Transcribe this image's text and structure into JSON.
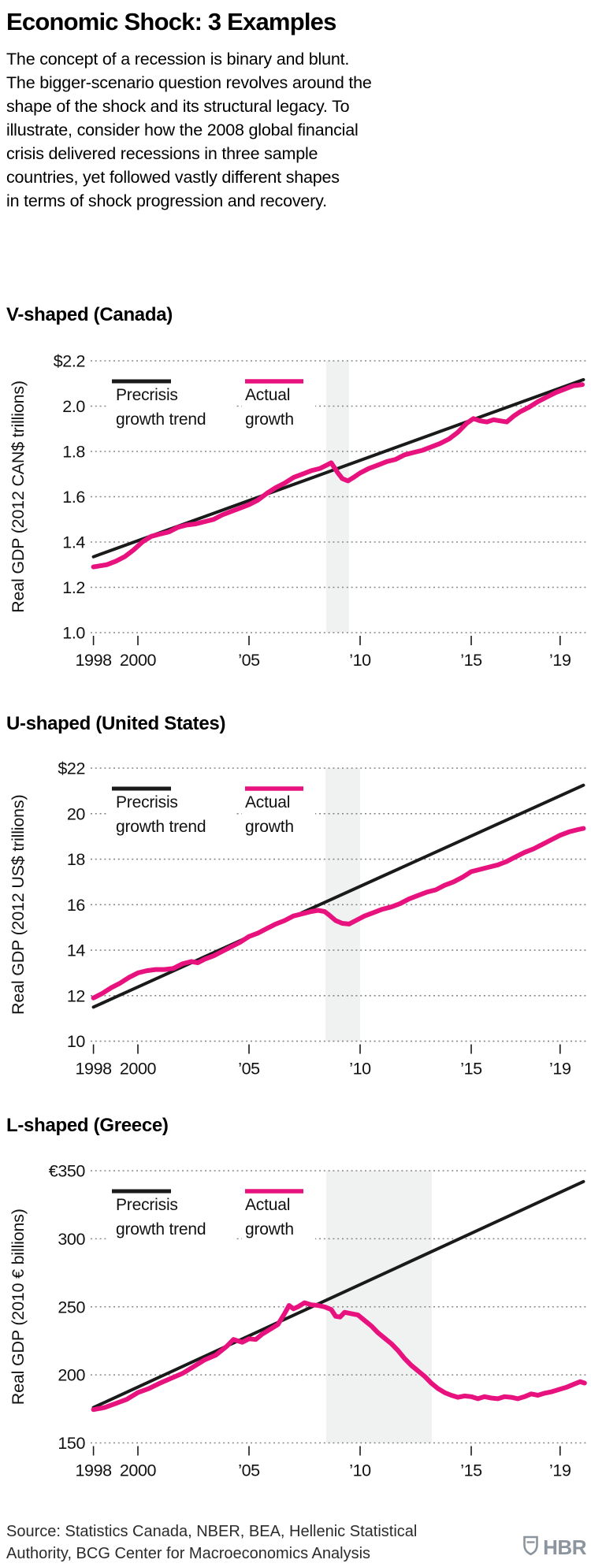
{
  "header": {
    "title": "Economic Shock: 3 Examples",
    "intro": "The concept of a recession is binary and blunt.\nThe bigger-scenario question revolves around the\nshape of the shock and its structural legacy. To\nillustrate, consider how the 2008 global financial\ncrisis delivered recessions in three sample\ncountries, yet followed vastly different shapes\nin terms of shock progression and recovery."
  },
  "legend": {
    "trend_lines": [
      "Precrisis",
      "growth trend"
    ],
    "actual_lines": [
      "Actual",
      "growth"
    ]
  },
  "colors": {
    "trend": "#1a1a1a",
    "actual": "#e7127e",
    "recession_band": "#f0f1f1",
    "grid": "#878787",
    "tick": "#1a1a1a",
    "logo": "#8c959d"
  },
  "footer": {
    "source": "Source: Statistics Canada, NBER, BEA, Hellenic Statistical\nAuthority, BCG Center for Macroeconomics Analysis",
    "logo_text": "HBR"
  },
  "chart_data": [
    {
      "type": "line",
      "title": "V-shaped (Canada)",
      "ylabel": "Real GDP (2012 CAN$ trillions)",
      "ylim": [
        1.0,
        2.2
      ],
      "xlim": [
        1998,
        2020.1
      ],
      "grid": true,
      "legend_position": "top-left-inside",
      "yticks": [
        {
          "label": "$2.2",
          "value": 2.2
        },
        {
          "label": "2.0",
          "value": 2.0
        },
        {
          "label": "1.8",
          "value": 1.8
        },
        {
          "label": "1.6",
          "value": 1.6
        },
        {
          "label": "1.4",
          "value": 1.4
        },
        {
          "label": "1.2",
          "value": 1.2
        },
        {
          "label": "1.0",
          "value": 1.0
        }
      ],
      "xticks": [
        {
          "label": "1998",
          "value": 1998
        },
        {
          "label": "2000",
          "value": 2000
        },
        {
          "label": "’05",
          "value": 2005
        },
        {
          "label": "’10",
          "value": 2010
        },
        {
          "label": "’15",
          "value": 2015
        },
        {
          "label": "’19",
          "value": 2019
        }
      ],
      "recession_band": [
        2008.47,
        2009.5
      ],
      "series": [
        {
          "name": "Precrisis growth trend",
          "color": "trend",
          "points": [
            [
              1998,
              1.335
            ],
            [
              2020.05,
              2.117
            ]
          ]
        },
        {
          "name": "Actual growth",
          "color": "actual",
          "points": [
            [
              1998.0,
              1.29
            ],
            [
              1998.3,
              1.295
            ],
            [
              1998.6,
              1.3
            ],
            [
              1999.0,
              1.315
            ],
            [
              1999.4,
              1.335
            ],
            [
              1999.8,
              1.365
            ],
            [
              2000.2,
              1.4
            ],
            [
              2000.6,
              1.425
            ],
            [
              2001.0,
              1.435
            ],
            [
              2001.4,
              1.445
            ],
            [
              2001.8,
              1.465
            ],
            [
              2002.2,
              1.475
            ],
            [
              2002.6,
              1.48
            ],
            [
              2003.0,
              1.49
            ],
            [
              2003.4,
              1.5
            ],
            [
              2003.8,
              1.52
            ],
            [
              2004.2,
              1.535
            ],
            [
              2004.6,
              1.55
            ],
            [
              2005.0,
              1.565
            ],
            [
              2005.4,
              1.585
            ],
            [
              2005.8,
              1.615
            ],
            [
              2006.2,
              1.64
            ],
            [
              2006.6,
              1.66
            ],
            [
              2007.0,
              1.685
            ],
            [
              2007.4,
              1.7
            ],
            [
              2007.8,
              1.715
            ],
            [
              2008.2,
              1.725
            ],
            [
              2008.5,
              1.74
            ],
            [
              2008.7,
              1.75
            ],
            [
              2009.0,
              1.705
            ],
            [
              2009.2,
              1.68
            ],
            [
              2009.45,
              1.67
            ],
            [
              2009.7,
              1.685
            ],
            [
              2010.0,
              1.705
            ],
            [
              2010.4,
              1.725
            ],
            [
              2010.8,
              1.74
            ],
            [
              2011.2,
              1.755
            ],
            [
              2011.6,
              1.765
            ],
            [
              2012.0,
              1.785
            ],
            [
              2012.4,
              1.795
            ],
            [
              2012.8,
              1.805
            ],
            [
              2013.2,
              1.82
            ],
            [
              2013.6,
              1.835
            ],
            [
              2014.0,
              1.855
            ],
            [
              2014.4,
              1.885
            ],
            [
              2014.8,
              1.925
            ],
            [
              2015.1,
              1.945
            ],
            [
              2015.4,
              1.935
            ],
            [
              2015.7,
              1.93
            ],
            [
              2016.0,
              1.94
            ],
            [
              2016.3,
              1.935
            ],
            [
              2016.6,
              1.93
            ],
            [
              2016.9,
              1.955
            ],
            [
              2017.2,
              1.975
            ],
            [
              2017.6,
              1.995
            ],
            [
              2018.0,
              2.02
            ],
            [
              2018.4,
              2.04
            ],
            [
              2018.8,
              2.06
            ],
            [
              2019.2,
              2.075
            ],
            [
              2019.6,
              2.09
            ],
            [
              2020.0,
              2.095
            ]
          ]
        }
      ]
    },
    {
      "type": "line",
      "title": "U-shaped (United States)",
      "ylabel": "Real GDP (2012 US$ trillions)",
      "ylim": [
        10,
        22
      ],
      "xlim": [
        1998,
        2020.1
      ],
      "grid": true,
      "legend_position": "top-left-inside",
      "yticks": [
        {
          "label": "$22",
          "value": 22
        },
        {
          "label": "20",
          "value": 20
        },
        {
          "label": "18",
          "value": 18
        },
        {
          "label": "16",
          "value": 16
        },
        {
          "label": "14",
          "value": 14
        },
        {
          "label": "12",
          "value": 12
        },
        {
          "label": "10",
          "value": 10
        }
      ],
      "xticks": [
        {
          "label": "1998",
          "value": 1998
        },
        {
          "label": "2000",
          "value": 2000
        },
        {
          "label": "’05",
          "value": 2005
        },
        {
          "label": "’10",
          "value": 2010
        },
        {
          "label": "’15",
          "value": 2015
        },
        {
          "label": "’19",
          "value": 2019
        }
      ],
      "recession_band": [
        2008.44,
        2010.0
      ],
      "series": [
        {
          "name": "Precrisis growth trend",
          "color": "trend",
          "points": [
            [
              1998,
              11.5
            ],
            [
              2020.05,
              21.25
            ]
          ]
        },
        {
          "name": "Actual growth",
          "color": "actual",
          "points": [
            [
              1998.0,
              11.9
            ],
            [
              1998.4,
              12.1
            ],
            [
              1998.8,
              12.35
            ],
            [
              1999.2,
              12.55
            ],
            [
              1999.6,
              12.8
            ],
            [
              2000.0,
              13.0
            ],
            [
              2000.4,
              13.1
            ],
            [
              2000.8,
              13.15
            ],
            [
              2001.2,
              13.15
            ],
            [
              2001.6,
              13.2
            ],
            [
              2002.0,
              13.4
            ],
            [
              2002.4,
              13.5
            ],
            [
              2002.7,
              13.45
            ],
            [
              2003.0,
              13.6
            ],
            [
              2003.4,
              13.75
            ],
            [
              2003.8,
              13.95
            ],
            [
              2004.2,
              14.15
            ],
            [
              2004.6,
              14.35
            ],
            [
              2005.0,
              14.6
            ],
            [
              2005.4,
              14.75
            ],
            [
              2005.8,
              14.95
            ],
            [
              2006.2,
              15.15
            ],
            [
              2006.6,
              15.3
            ],
            [
              2007.0,
              15.5
            ],
            [
              2007.4,
              15.6
            ],
            [
              2007.8,
              15.7
            ],
            [
              2008.1,
              15.75
            ],
            [
              2008.4,
              15.7
            ],
            [
              2008.6,
              15.55
            ],
            [
              2008.9,
              15.3
            ],
            [
              2009.2,
              15.18
            ],
            [
              2009.5,
              15.15
            ],
            [
              2009.8,
              15.3
            ],
            [
              2010.2,
              15.5
            ],
            [
              2010.6,
              15.65
            ],
            [
              2011.0,
              15.8
            ],
            [
              2011.4,
              15.9
            ],
            [
              2011.8,
              16.05
            ],
            [
              2012.2,
              16.25
            ],
            [
              2012.6,
              16.4
            ],
            [
              2013.0,
              16.55
            ],
            [
              2013.4,
              16.65
            ],
            [
              2013.8,
              16.85
            ],
            [
              2014.2,
              17.0
            ],
            [
              2014.6,
              17.2
            ],
            [
              2015.0,
              17.45
            ],
            [
              2015.4,
              17.55
            ],
            [
              2015.8,
              17.65
            ],
            [
              2016.2,
              17.75
            ],
            [
              2016.6,
              17.9
            ],
            [
              2017.0,
              18.1
            ],
            [
              2017.4,
              18.3
            ],
            [
              2017.8,
              18.45
            ],
            [
              2018.2,
              18.65
            ],
            [
              2018.6,
              18.85
            ],
            [
              2019.0,
              19.05
            ],
            [
              2019.4,
              19.2
            ],
            [
              2019.8,
              19.3
            ],
            [
              2020.05,
              19.35
            ]
          ]
        }
      ]
    },
    {
      "type": "line",
      "title": "L-shaped (Greece)",
      "ylabel": "Real GDP (2010 € billions)",
      "ylim": [
        150,
        350
      ],
      "xlim": [
        1998,
        2020.1
      ],
      "grid": true,
      "legend_position": "top-left-inside",
      "yticks": [
        {
          "label": "€350",
          "value": 350
        },
        {
          "label": "300",
          "value": 300
        },
        {
          "label": "250",
          "value": 250
        },
        {
          "label": "200",
          "value": 200
        },
        {
          "label": "150",
          "value": 150
        }
      ],
      "xticks": [
        {
          "label": "1998",
          "value": 1998
        },
        {
          "label": "2000",
          "value": 2000
        },
        {
          "label": "’05",
          "value": 2005
        },
        {
          "label": "’10",
          "value": 2010
        },
        {
          "label": "’15",
          "value": 2015
        },
        {
          "label": "’19",
          "value": 2019
        }
      ],
      "recession_band": [
        2008.47,
        2013.23
      ],
      "series": [
        {
          "name": "Precrisis growth trend",
          "color": "trend",
          "points": [
            [
              1998,
              176
            ],
            [
              2020.05,
              342
            ]
          ]
        },
        {
          "name": "Actual growth",
          "color": "actual",
          "points": [
            [
              1998.0,
              174.5
            ],
            [
              1998.5,
              176
            ],
            [
              1999.0,
              179
            ],
            [
              1999.5,
              182
            ],
            [
              2000.0,
              187
            ],
            [
              2000.5,
              190
            ],
            [
              2001.0,
              194
            ],
            [
              2001.5,
              197.5
            ],
            [
              2002.0,
              201
            ],
            [
              2002.5,
              206
            ],
            [
              2003.0,
              211
            ],
            [
              2003.5,
              214.5
            ],
            [
              2004.0,
              221
            ],
            [
              2004.3,
              226
            ],
            [
              2004.7,
              224
            ],
            [
              2005.0,
              226.5
            ],
            [
              2005.3,
              226
            ],
            [
              2005.6,
              230
            ],
            [
              2006.0,
              234
            ],
            [
              2006.3,
              237
            ],
            [
              2006.6,
              245
            ],
            [
              2006.8,
              251
            ],
            [
              2007.0,
              248.5
            ],
            [
              2007.2,
              250
            ],
            [
              2007.5,
              253
            ],
            [
              2007.8,
              251.5
            ],
            [
              2008.1,
              251
            ],
            [
              2008.4,
              250
            ],
            [
              2008.7,
              248
            ],
            [
              2008.9,
              243
            ],
            [
              2009.1,
              242.5
            ],
            [
              2009.3,
              246
            ],
            [
              2009.6,
              245
            ],
            [
              2009.9,
              244
            ],
            [
              2010.2,
              240
            ],
            [
              2010.5,
              236
            ],
            [
              2010.8,
              231
            ],
            [
              2011.1,
              227
            ],
            [
              2011.4,
              223
            ],
            [
              2011.7,
              218
            ],
            [
              2012.0,
              212
            ],
            [
              2012.3,
              207
            ],
            [
              2012.6,
              203
            ],
            [
              2012.9,
              199
            ],
            [
              2013.2,
              194
            ],
            [
              2013.5,
              190
            ],
            [
              2013.8,
              187
            ],
            [
              2014.1,
              185
            ],
            [
              2014.4,
              183.5
            ],
            [
              2014.7,
              184.5
            ],
            [
              2015.0,
              184
            ],
            [
              2015.3,
              182.5
            ],
            [
              2015.6,
              184
            ],
            [
              2015.9,
              183
            ],
            [
              2016.2,
              182.5
            ],
            [
              2016.5,
              184
            ],
            [
              2016.8,
              183.5
            ],
            [
              2017.1,
              182.5
            ],
            [
              2017.4,
              184
            ],
            [
              2017.7,
              186
            ],
            [
              2018.0,
              185
            ],
            [
              2018.3,
              186.5
            ],
            [
              2018.6,
              187.5
            ],
            [
              2019.0,
              189.5
            ],
            [
              2019.3,
              191
            ],
            [
              2019.6,
              193
            ],
            [
              2019.9,
              195
            ],
            [
              2020.1,
              194
            ]
          ]
        }
      ]
    }
  ]
}
